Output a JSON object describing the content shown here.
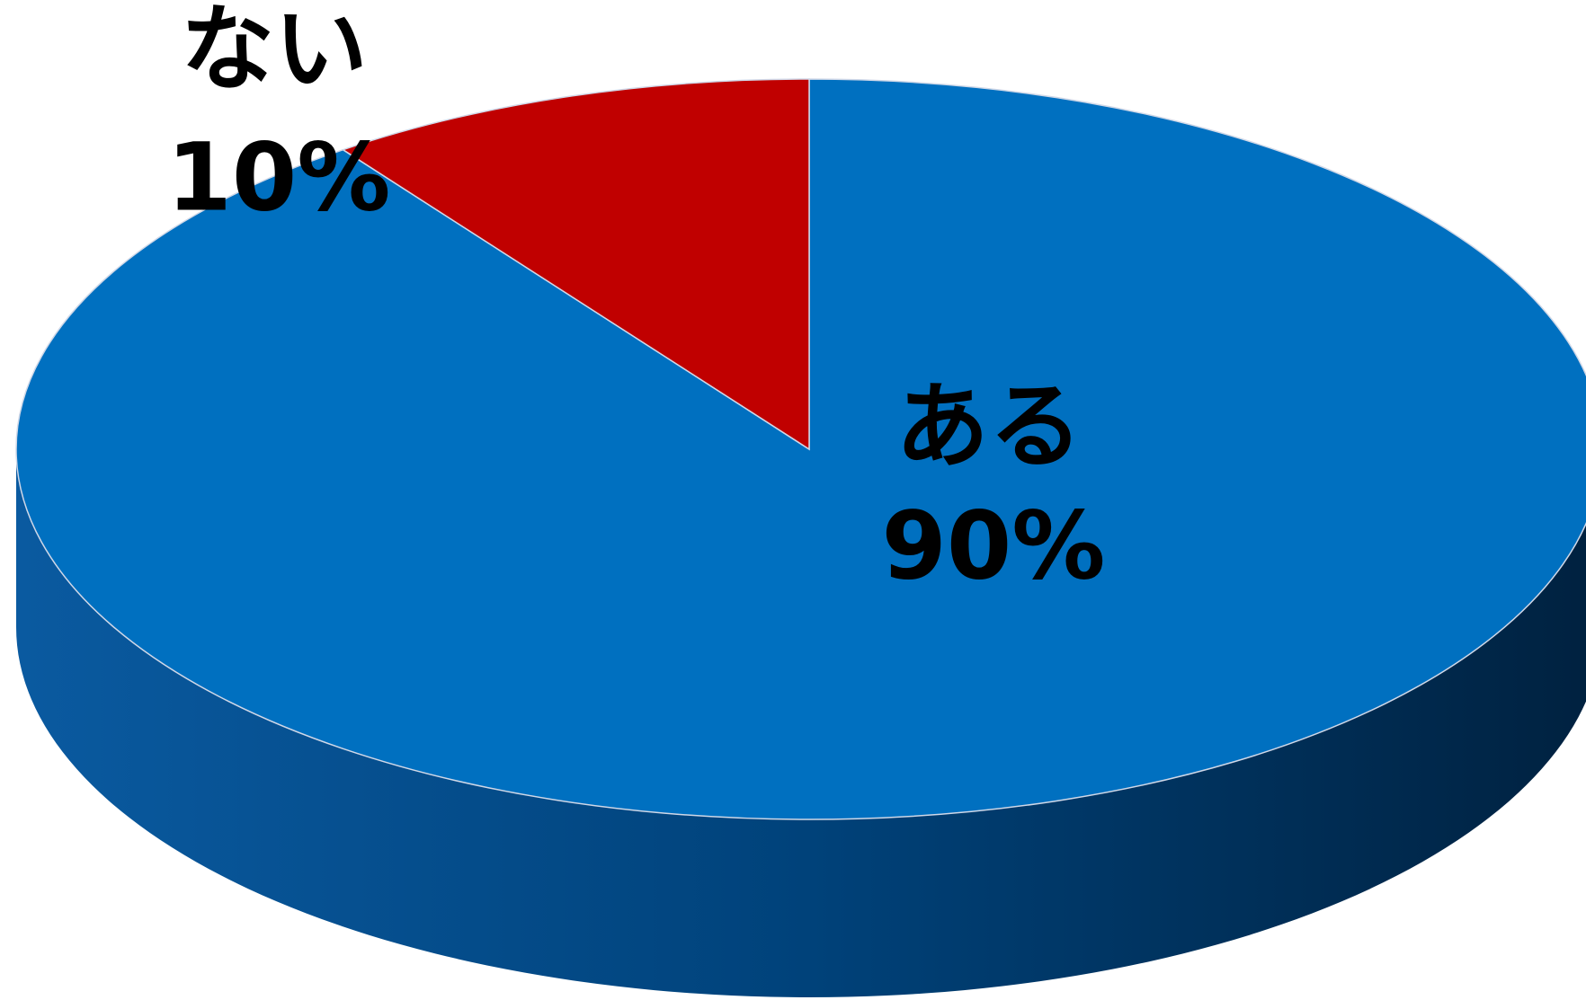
{
  "chart_data": {
    "type": "pie",
    "view": "3d",
    "categories": [
      "ある",
      "ない"
    ],
    "values": [
      90,
      10
    ],
    "value_labels": [
      "90%",
      "10%"
    ],
    "colors": [
      "#0070c0",
      "#c00000"
    ]
  }
}
